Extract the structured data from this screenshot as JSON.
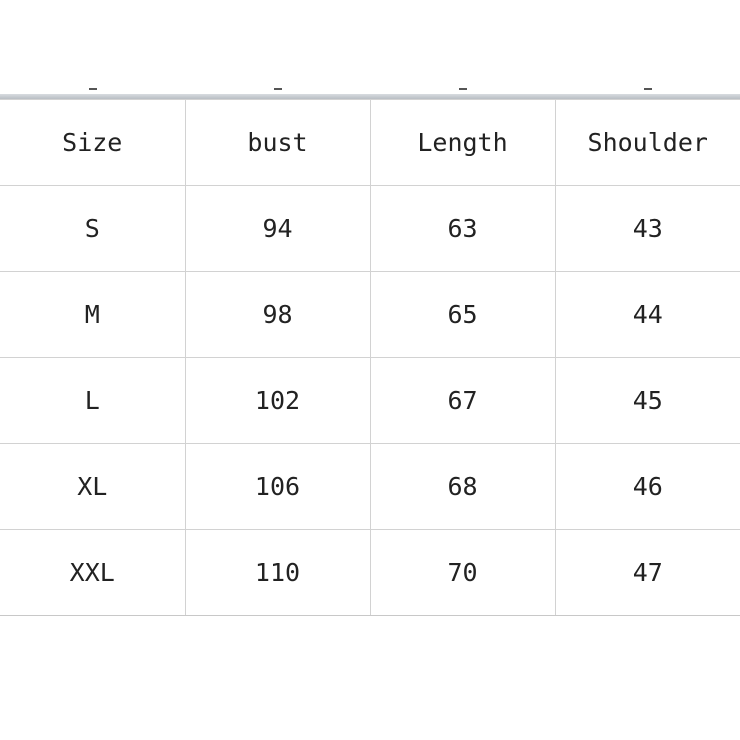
{
  "table": {
    "headers": [
      "Size",
      "bust",
      "Length",
      "Shoulder"
    ],
    "rows": [
      [
        "S",
        "94",
        "63",
        "43"
      ],
      [
        "M",
        "98",
        "65",
        "44"
      ],
      [
        "L",
        "102",
        "67",
        "45"
      ],
      [
        "XL",
        "106",
        "68",
        "46"
      ],
      [
        "XXL",
        "110",
        "70",
        "47"
      ]
    ]
  }
}
